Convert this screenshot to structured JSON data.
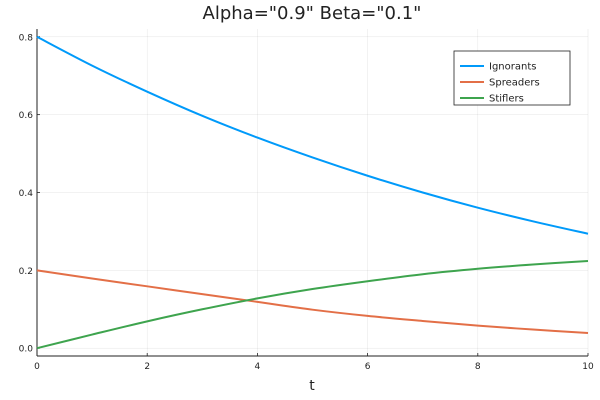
{
  "chart_data": {
    "type": "line",
    "title": "Alpha=\"0.9\"  Beta=\"0.1\"",
    "xlabel": "t",
    "ylabel": "",
    "xlim": [
      0,
      10
    ],
    "ylim": [
      -0.02,
      0.82
    ],
    "xticks": [
      0,
      2,
      4,
      6,
      8,
      10
    ],
    "yticks": [
      0.0,
      0.2,
      0.4,
      0.6,
      0.8
    ],
    "grid": true,
    "legend_position": "top-right",
    "x": [
      0,
      1,
      2,
      3,
      4,
      5,
      6,
      7,
      8,
      9,
      10
    ],
    "series": [
      {
        "name": "Ignorants",
        "color": "#009AFA",
        "values": [
          0.8,
          0.726,
          0.659,
          0.597,
          0.541,
          0.49,
          0.443,
          0.4,
          0.361,
          0.326,
          0.294
        ]
      },
      {
        "name": "Spreaders",
        "color": "#E36F47",
        "values": [
          0.2,
          0.179,
          0.159,
          0.139,
          0.119,
          0.099,
          0.083,
          0.07,
          0.058,
          0.048,
          0.039
        ]
      },
      {
        "name": "Stiflers",
        "color": "#3EA44E",
        "values": [
          0.0,
          0.035,
          0.069,
          0.1,
          0.128,
          0.152,
          0.172,
          0.19,
          0.204,
          0.215,
          0.224
        ]
      }
    ]
  }
}
